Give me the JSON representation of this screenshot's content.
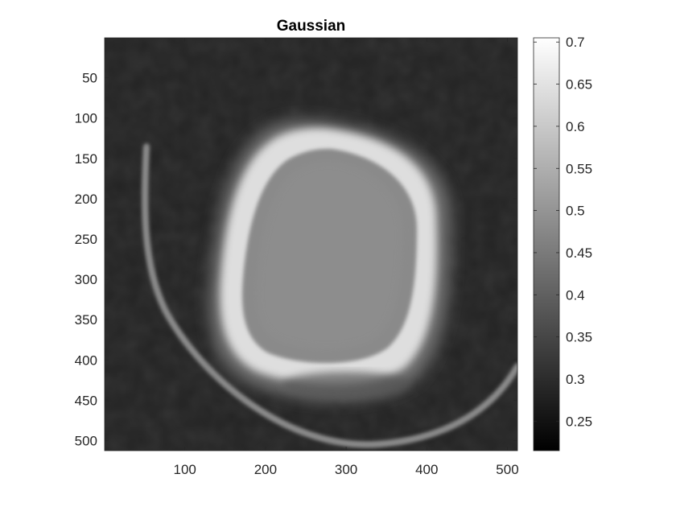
{
  "chart_data": {
    "type": "heatmap",
    "title": "Gaussian",
    "xlabel": "",
    "ylabel": "",
    "xlim": [
      0.5,
      512.5
    ],
    "ylim": [
      0.5,
      512.5
    ],
    "y_direction": "reverse",
    "x_ticks": [
      100,
      200,
      300,
      400,
      500
    ],
    "y_ticks": [
      50,
      100,
      150,
      200,
      250,
      300,
      350,
      400,
      450,
      500
    ],
    "colormap": "gray",
    "colorbar": {
      "location": "right",
      "range": [
        0.215,
        0.705
      ],
      "ticks": [
        0.25,
        0.3,
        0.35,
        0.4,
        0.45,
        0.5,
        0.55,
        0.6,
        0.65,
        0.7
      ],
      "tick_labels": [
        "0.25",
        "0.3",
        "0.35",
        "0.4",
        "0.45",
        "0.5",
        "0.55",
        "0.6",
        "0.65",
        "0.7"
      ]
    },
    "image_content": "grayscale axial head scan smoothed with a Gaussian filter",
    "values_estimate": {
      "background": 0.3,
      "skull_ring": 0.66,
      "brain_interior": 0.48,
      "support_arc": 0.44
    },
    "grid": false
  },
  "colors": {
    "axes_text": "#262626",
    "axes_frame": "#262626",
    "background": "#ffffff"
  }
}
